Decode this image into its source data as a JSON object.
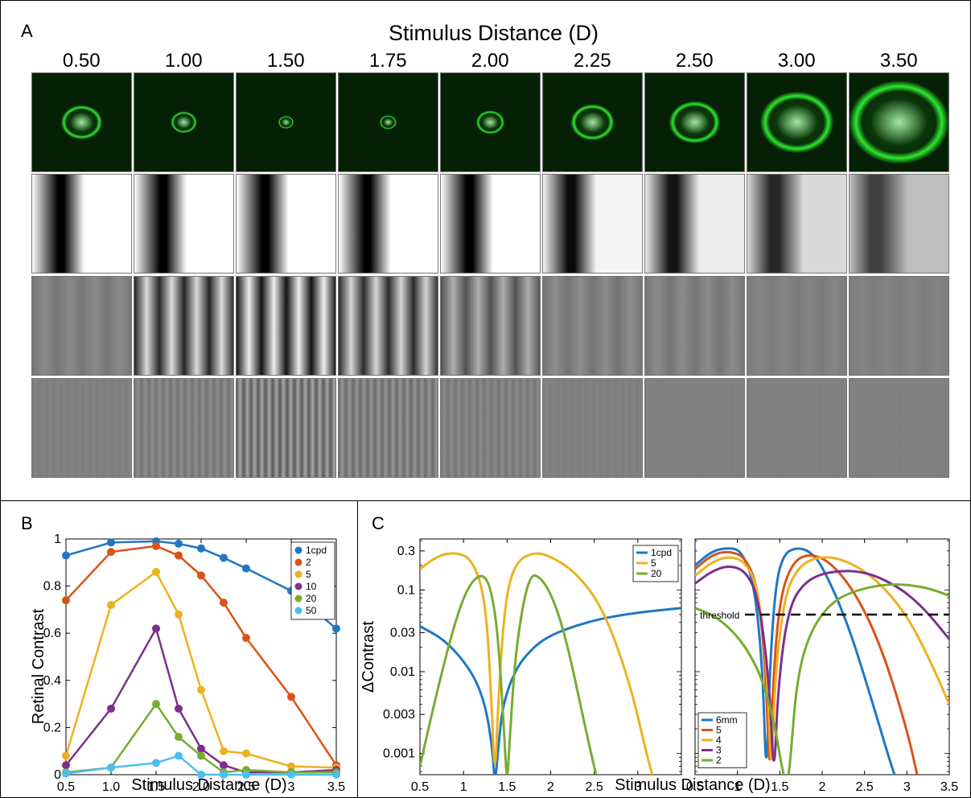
{
  "panelA": {
    "label": "A",
    "title": "Stimulus Distance (D)",
    "distances": [
      "0.50",
      "1.00",
      "1.50",
      "1.75",
      "2.00",
      "2.25",
      "2.50",
      "3.00",
      "3.50"
    ],
    "psf_color": "#2ee82e",
    "psf_sizes": [
      0.42,
      0.22,
      0.08,
      0.1,
      0.25,
      0.45,
      0.55,
      0.85,
      1.2
    ],
    "rows_contrast": {
      "edge": [
        1,
        1,
        1,
        1,
        1,
        0.92,
        0.85,
        0.7,
        0.5
      ],
      "medium": [
        0.08,
        0.72,
        0.86,
        0.68,
        0.36,
        0.1,
        0.09,
        0.04,
        0.03
      ],
      "fine": [
        0.02,
        0.1,
        0.3,
        0.17,
        0.08,
        0.02,
        0.01,
        0.01,
        0.01
      ]
    }
  },
  "panelB": {
    "label": "B"
  },
  "panelC": {
    "label": "C"
  },
  "chart_data": [
    {
      "type": "line",
      "panel": "B",
      "xlabel": "Stimulus Distance (D)",
      "ylabel": "Retinal Contrast",
      "xlim": [
        0.5,
        3.5
      ],
      "ylim": [
        0,
        1
      ],
      "xticks": [
        0.5,
        1,
        1.5,
        2,
        2.5,
        3,
        3.5
      ],
      "xticklabels": [
        "0.5",
        "1.0",
        "1.5",
        "2.0",
        "2.5",
        "3",
        "3.5"
      ],
      "yticks": [
        0,
        0.2,
        0.4,
        0.6,
        0.8,
        1
      ],
      "yticklabels": [
        "0",
        "0.2",
        "0.4",
        "0.6",
        "0.8",
        "1"
      ],
      "legend_position": "top-right",
      "x": [
        0.5,
        1.0,
        1.5,
        1.75,
        2.0,
        2.25,
        2.5,
        3.0,
        3.5
      ],
      "series": [
        {
          "name": "1cpd",
          "color": "#1f77c4",
          "values": [
            0.93,
            0.985,
            0.99,
            0.98,
            0.96,
            0.92,
            0.875,
            0.78,
            0.62
          ]
        },
        {
          "name": "2",
          "color": "#d95319",
          "values": [
            0.74,
            0.945,
            0.97,
            0.93,
            0.845,
            0.73,
            0.58,
            0.33,
            0.04
          ]
        },
        {
          "name": "5",
          "color": "#edb120",
          "values": [
            0.08,
            0.72,
            0.86,
            0.68,
            0.36,
            0.1,
            0.09,
            0.035,
            0.03
          ]
        },
        {
          "name": "10",
          "color": "#7e2f8e",
          "values": [
            0.04,
            0.28,
            0.62,
            0.28,
            0.11,
            0.04,
            0.01,
            0.01,
            0.02
          ]
        },
        {
          "name": "20",
          "color": "#77ac30",
          "values": [
            0.01,
            0.03,
            0.3,
            0.16,
            0.08,
            0.01,
            0.02,
            0.01,
            0.01
          ]
        },
        {
          "name": "50",
          "color": "#4dbeee",
          "values": [
            0.005,
            0.03,
            0.05,
            0.08,
            0.0,
            0.0,
            0.0,
            0.0,
            0.0
          ]
        }
      ]
    },
    {
      "type": "line",
      "panel": "C-left",
      "ylabel": "ΔContrast",
      "yscale": "log",
      "xlim": [
        0.5,
        3.5
      ],
      "ylim": [
        0.0005,
        0.4
      ],
      "xticks": [
        0.5,
        1,
        1.5,
        2,
        2.5,
        3
      ],
      "xticklabels": [
        "0.5",
        "1",
        "1.5",
        "2",
        "2.5",
        "3"
      ],
      "yticks": [
        0.001,
        0.003,
        0.01,
        0.03,
        0.1,
        0.3
      ],
      "yticklabels": [
        "0.001",
        "0.003",
        "0.01",
        "0.03",
        "0.1",
        "0.3"
      ],
      "legend_position": "top-right",
      "series": [
        {
          "name": "1cpd",
          "color": "#1f77c4",
          "x": [
            0.5,
            0.8,
            1.1,
            1.25,
            1.33,
            1.36,
            1.4,
            1.45,
            1.6,
            1.8,
            2.0,
            2.3,
            2.6,
            3.0,
            3.5
          ],
          "values": [
            0.036,
            0.024,
            0.01,
            0.004,
            0.0012,
            0.0004,
            0.0012,
            0.004,
            0.011,
            0.02,
            0.028,
            0.037,
            0.045,
            0.053,
            0.06
          ]
        },
        {
          "name": "5",
          "color": "#edb120",
          "x": [
            0.5,
            0.7,
            0.9,
            1.1,
            1.25,
            1.32,
            1.36,
            1.4,
            1.48,
            1.6,
            1.8,
            2.0,
            2.3,
            2.6,
            2.9,
            3.1,
            3.2
          ],
          "values": [
            0.18,
            0.26,
            0.29,
            0.24,
            0.08,
            0.005,
            0.0004,
            0.005,
            0.08,
            0.22,
            0.29,
            0.26,
            0.16,
            0.06,
            0.008,
            0.001,
            0.0004
          ]
        },
        {
          "name": "20",
          "color": "#77ac30",
          "x": [
            0.5,
            0.7,
            0.9,
            1.05,
            1.2,
            1.3,
            1.38,
            1.43,
            1.47,
            1.5,
            1.53,
            1.6,
            1.75,
            1.9,
            2.05,
            2.2,
            2.4,
            2.55
          ],
          "values": [
            0.0007,
            0.006,
            0.04,
            0.11,
            0.16,
            0.12,
            0.04,
            0.008,
            0.0015,
            0.0004,
            0.0015,
            0.02,
            0.16,
            0.14,
            0.07,
            0.02,
            0.002,
            0.0004
          ]
        }
      ]
    },
    {
      "type": "line",
      "panel": "C-right",
      "xlabel": "Stimulus Distance (D)",
      "yscale": "log",
      "xlim": [
        0.5,
        3.5
      ],
      "ylim": [
        0.0005,
        0.4
      ],
      "xticks": [
        0.5,
        1,
        1.5,
        2,
        2.5,
        3,
        3.5
      ],
      "xticklabels": [
        "0.5",
        "1",
        "1.5",
        "2",
        "2.5",
        "3",
        "3.5"
      ],
      "threshold": {
        "label": "threshold",
        "value": 0.05
      },
      "legend_position": "bottom-left",
      "series": [
        {
          "name": "6mm",
          "color": "#1f77c4",
          "x": [
            0.5,
            0.7,
            0.9,
            1.05,
            1.2,
            1.3,
            1.34,
            1.38,
            1.45,
            1.55,
            1.7,
            1.85,
            2.0,
            2.3,
            2.6,
            2.8,
            2.9
          ],
          "values": [
            0.2,
            0.3,
            0.33,
            0.3,
            0.12,
            0.01,
            0.0004,
            0.01,
            0.12,
            0.28,
            0.33,
            0.3,
            0.2,
            0.04,
            0.004,
            0.0008,
            0.0004
          ]
        },
        {
          "name": "5",
          "color": "#d95319",
          "x": [
            0.5,
            0.7,
            0.9,
            1.1,
            1.25,
            1.34,
            1.38,
            1.42,
            1.5,
            1.65,
            1.85,
            2.1,
            2.4,
            2.7,
            3.0,
            3.15
          ],
          "values": [
            0.18,
            0.27,
            0.3,
            0.25,
            0.1,
            0.008,
            0.0004,
            0.008,
            0.08,
            0.22,
            0.28,
            0.22,
            0.09,
            0.02,
            0.002,
            0.0004
          ]
        },
        {
          "name": "4",
          "color": "#edb120",
          "x": [
            0.5,
            0.7,
            0.9,
            1.1,
            1.25,
            1.36,
            1.4,
            1.44,
            1.55,
            1.7,
            1.9,
            2.2,
            2.6,
            3.0,
            3.3,
            3.5
          ],
          "values": [
            0.15,
            0.22,
            0.26,
            0.22,
            0.1,
            0.008,
            0.0004,
            0.008,
            0.08,
            0.18,
            0.25,
            0.25,
            0.15,
            0.05,
            0.012,
            0.004
          ]
        },
        {
          "name": "3",
          "color": "#7e2f8e",
          "x": [
            0.5,
            0.7,
            0.9,
            1.1,
            1.25,
            1.38,
            1.43,
            1.48,
            1.6,
            1.8,
            2.1,
            2.5,
            2.9,
            3.2,
            3.5
          ],
          "values": [
            0.12,
            0.17,
            0.2,
            0.17,
            0.08,
            0.007,
            0.0004,
            0.007,
            0.06,
            0.13,
            0.17,
            0.17,
            0.11,
            0.06,
            0.025
          ]
        },
        {
          "name": "2",
          "color": "#77ac30",
          "x": [
            0.5,
            0.7,
            0.9,
            1.1,
            1.3,
            1.45,
            1.52,
            1.58,
            1.62,
            1.7,
            1.85,
            2.1,
            2.4,
            2.8,
            3.2,
            3.5
          ],
          "values": [
            0.06,
            0.05,
            0.035,
            0.02,
            0.008,
            0.002,
            0.0007,
            0.0004,
            0.0007,
            0.008,
            0.03,
            0.07,
            0.1,
            0.12,
            0.11,
            0.085
          ]
        }
      ]
    }
  ]
}
